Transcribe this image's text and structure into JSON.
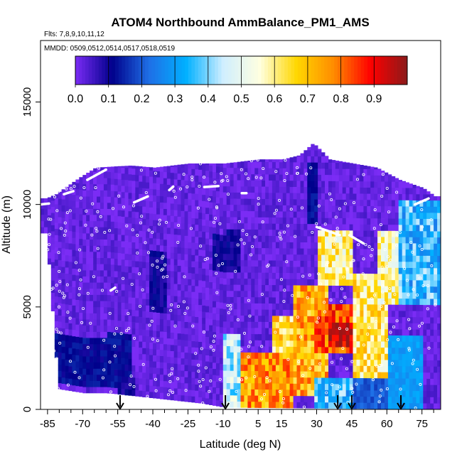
{
  "chart_data": {
    "type": "heatmap",
    "title": "ATOM4 Northbound AmmBalance_PM1_AMS",
    "flights_label": "Flts: 7,8,9,10,11,12",
    "dates_label": "MMDD: 0509,0512,0514,0517,0518,0519",
    "xlabel": "Latitude (deg N)",
    "ylabel": "Altitude (m)",
    "xlim": [
      -88,
      83
    ],
    "ylim": [
      0,
      18000
    ],
    "x_ticks": [
      -85,
      -70,
      -55,
      -40,
      -25,
      -10,
      5,
      15,
      30,
      45,
      60,
      75
    ],
    "x_tick_labels": [
      "-85",
      "-70",
      "-55",
      "-40",
      "-25",
      "-10",
      "5",
      "15",
      "30",
      "45",
      "60",
      "75"
    ],
    "x_minor_ticks": [
      -80,
      -75,
      -65,
      -60,
      -50,
      -45,
      -35,
      -30,
      -20,
      -15,
      -5,
      0,
      10,
      20,
      25,
      35,
      40,
      50,
      55,
      65,
      70,
      80
    ],
    "y_ticks": [
      0,
      5000,
      10000,
      15000
    ],
    "y_tick_labels": [
      "0",
      "5000",
      "10000",
      "15000"
    ],
    "colorbar": {
      "min": 0.0,
      "max": 1.0,
      "ticks": [
        0.0,
        0.1,
        0.2,
        0.3,
        0.4,
        0.5,
        0.6,
        0.7,
        0.8,
        0.9
      ],
      "tick_labels": [
        "0.0",
        "0.1",
        "0.2",
        "0.3",
        "0.4",
        "0.5",
        "0.6",
        "0.7",
        "0.8",
        "0.9"
      ],
      "colors": [
        "#7b2cf5",
        "#00008b",
        "#1f6fe6",
        "#00b0ff",
        "#cfeeff",
        "#ffffe0",
        "#ffd700",
        "#ff8c00",
        "#ff0000",
        "#8b1a1a"
      ]
    },
    "grid": false,
    "column_altitude_max_m": [
      [
        -86,
        10300
      ],
      [
        -82,
        10500
      ],
      [
        -72,
        11300
      ],
      [
        -65,
        11800
      ],
      [
        -50,
        11900
      ],
      [
        -40,
        11800
      ],
      [
        -25,
        12000
      ],
      [
        -10,
        12000
      ],
      [
        5,
        12200
      ],
      [
        15,
        12200
      ],
      [
        22,
        12400
      ],
      [
        28,
        13000
      ],
      [
        35,
        12200
      ],
      [
        45,
        12000
      ],
      [
        55,
        11800
      ],
      [
        65,
        11200
      ],
      [
        75,
        10800
      ],
      [
        80,
        10400
      ]
    ],
    "column_altitude_min_m": [
      [
        -86,
        8600
      ],
      [
        -81,
        1000
      ],
      [
        -70,
        800
      ],
      [
        -60,
        800
      ],
      [
        -20,
        300
      ],
      [
        -10,
        100
      ],
      [
        83,
        0
      ]
    ],
    "regions": [
      {
        "lat": [
          -88,
          20
        ],
        "alt": [
          0,
          12500
        ],
        "value": 0.02
      },
      {
        "lat": [
          -82,
          -50
        ],
        "alt": [
          1000,
          3500
        ],
        "value": 0.12
      },
      {
        "lat": [
          -55,
          -48
        ],
        "alt": [
          0,
          1500
        ],
        "value": 0.1
      },
      {
        "lat": [
          -42,
          -35
        ],
        "alt": [
          4500,
          7500
        ],
        "value": 0.1
      },
      {
        "lat": [
          -15,
          -3
        ],
        "alt": [
          6500,
          8500
        ],
        "value": 0.1
      },
      {
        "lat": [
          -10,
          -3
        ],
        "alt": [
          0,
          3500
        ],
        "value": 0.45
      },
      {
        "lat": [
          -3,
          20
        ],
        "alt": [
          0,
          2500
        ],
        "value": 0.75
      },
      {
        "lat": [
          10,
          22
        ],
        "alt": [
          2500,
          4500
        ],
        "value": 0.65
      },
      {
        "lat": [
          20,
          35
        ],
        "alt": [
          500,
          6000
        ],
        "value": 0.72
      },
      {
        "lat": [
          28,
          45
        ],
        "alt": [
          2500,
          5000
        ],
        "value": 0.82
      },
      {
        "lat": [
          35,
          45
        ],
        "alt": [
          3000,
          4200
        ],
        "value": 0.95
      },
      {
        "lat": [
          30,
          45
        ],
        "alt": [
          6000,
          8500
        ],
        "value": 0.6
      },
      {
        "lat": [
          45,
          60
        ],
        "alt": [
          1500,
          6500
        ],
        "value": 0.62
      },
      {
        "lat": [
          55,
          65
        ],
        "alt": [
          5000,
          8500
        ],
        "value": 0.58
      },
      {
        "lat": [
          60,
          75
        ],
        "alt": [
          0,
          3500
        ],
        "value": 0.3
      },
      {
        "lat": [
          65,
          82
        ],
        "alt": [
          5000,
          10000
        ],
        "value": 0.35
      },
      {
        "lat": [
          25,
          30
        ],
        "alt": [
          9000,
          12000
        ],
        "value": 0.12
      },
      {
        "lat": [
          28,
          45
        ],
        "alt": [
          0,
          1500
        ],
        "value": 0.35
      },
      {
        "lat": [
          45,
          60
        ],
        "alt": [
          0,
          1500
        ],
        "value": 0.2
      }
    ],
    "flight_track_markers": [
      {
        "lat": [
          -88,
          -84
        ],
        "alt": [
          10000,
          10050
        ]
      },
      {
        "lat": [
          -78,
          -74
        ],
        "alt": [
          10500,
          10650
        ]
      },
      {
        "lat": [
          -68,
          -60
        ],
        "alt": [
          11200,
          11700
        ]
      },
      {
        "lat": [
          -48,
          -42
        ],
        "alt": [
          10100,
          10400
        ]
      },
      {
        "lat": [
          -33,
          -31
        ],
        "alt": [
          10700,
          10900
        ]
      },
      {
        "lat": [
          -18,
          -12
        ],
        "alt": [
          10850,
          10900
        ]
      },
      {
        "lat": [
          -2,
          0
        ],
        "alt": [
          10550,
          10550
        ]
      },
      {
        "lat": [
          30,
          40
        ],
        "alt": [
          8900,
          8500
        ]
      },
      {
        "lat": [
          44,
          50
        ],
        "alt": [
          8500,
          8100
        ]
      },
      {
        "lat": [
          72,
          78
        ],
        "alt": [
          10000,
          10300
        ]
      },
      {
        "lat": [
          -58,
          -56
        ],
        "alt": [
          5800,
          5950
        ]
      }
    ],
    "profile_arrows_lat": [
      -54,
      -9,
      39,
      45,
      66
    ]
  }
}
